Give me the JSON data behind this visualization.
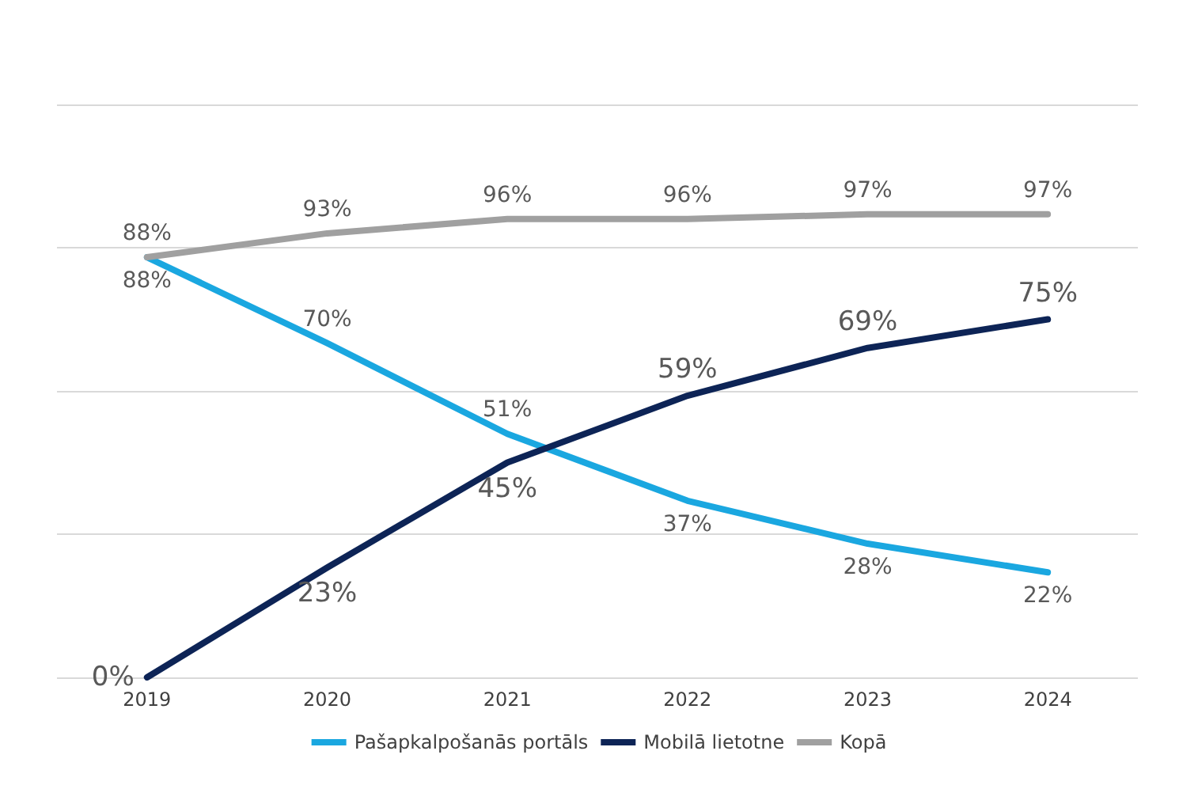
{
  "chart_data": {
    "type": "line",
    "categories": [
      "2019",
      "2020",
      "2021",
      "2022",
      "2023",
      "2024"
    ],
    "series": [
      {
        "name": "Pašapkalpošanās portāls",
        "color": "#1aa7e0",
        "values": [
          88,
          70,
          51,
          37,
          28,
          22
        ],
        "value_labels": [
          "88%",
          "70%",
          "51%",
          "37%",
          "28%",
          "22%"
        ]
      },
      {
        "name": "Mobilā lietotne",
        "color": "#0d2456",
        "values": [
          0,
          23,
          45,
          59,
          69,
          75
        ],
        "value_labels": [
          "0%",
          "23%",
          "45%",
          "59%",
          "69%",
          "75%"
        ]
      },
      {
        "name": "Kopā",
        "color": "#a0a0a0",
        "values": [
          88,
          93,
          96,
          96,
          97,
          97
        ],
        "value_labels": [
          "88%",
          "93%",
          "96%",
          "96%",
          "97%",
          "97%"
        ]
      }
    ],
    "ylim": [
      0,
      120
    ],
    "yticks": [
      {
        "value": 0,
        "label": null
      },
      {
        "value": 30,
        "label": null
      },
      {
        "value": 60,
        "label": null
      },
      {
        "value": 90,
        "label": null
      },
      {
        "value": 120,
        "label": null
      }
    ],
    "tick_labels": "x",
    "grid": "y",
    "legend": "bottom",
    "marker": "none",
    "line_style": "solid"
  }
}
